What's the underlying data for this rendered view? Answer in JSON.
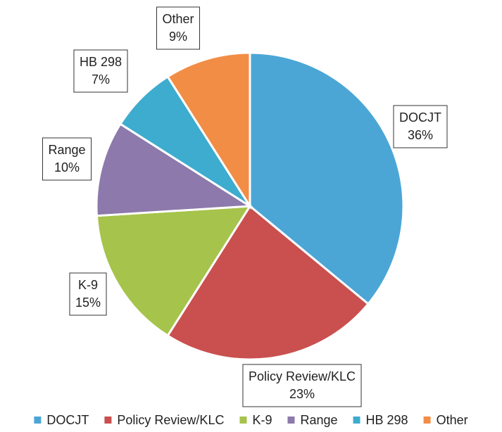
{
  "chart_data": {
    "type": "pie",
    "categories": [
      "DOCJT",
      "Policy Review/KLC",
      "K-9",
      "Range",
      "HB 298",
      "Other"
    ],
    "values": [
      36,
      23,
      15,
      10,
      7,
      9
    ],
    "value_labels": [
      "36%",
      "23%",
      "15%",
      "10%",
      "7%",
      "9%"
    ],
    "colors": [
      "#4ba6d6",
      "#c9504f",
      "#a6c34b",
      "#8d79ab",
      "#3eacce",
      "#f28d46"
    ],
    "legend": "bottom"
  }
}
